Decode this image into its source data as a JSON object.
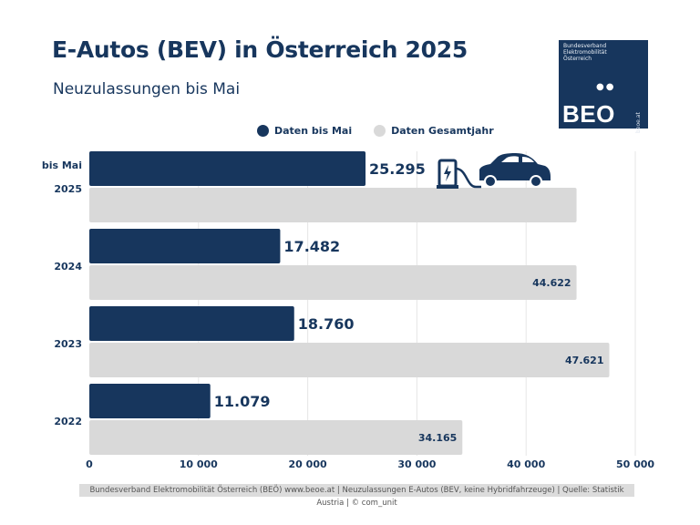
{
  "title": "E-Autos (BEV) in Österreich 2025",
  "subtitle": "Neuzulassungen bis Mai",
  "logo": {
    "org": "Bundesverband Elektromobilität Österreich",
    "dots": "●●",
    "text": "BEO",
    "url": "beoe.at"
  },
  "legend": [
    {
      "label": "Daten bis Mai",
      "color": "#17365d"
    },
    {
      "label": "Daten Gesamtjahr",
      "color": "#d9d9d9"
    }
  ],
  "footer": "Bundesverband Elektromobilität Österreich (BEÖ) www.beoe.at | Neuzulassungen E-Autos (BEV, keine Hybridfahrzeuge) | Quelle: Statistik Austria | © com_unit",
  "colors": {
    "dark": "#17365d",
    "light": "#d9d9d9",
    "grid": "#e6e6e6"
  },
  "chart_data": {
    "type": "bar",
    "orientation": "horizontal",
    "categories": [
      "2025",
      "2024",
      "2023",
      "2022"
    ],
    "category_prefix_2025": "bis Mai",
    "series": [
      {
        "name": "Daten bis Mai",
        "values": [
          25295,
          17482,
          18760,
          11079
        ],
        "labels": [
          "25.295",
          "17.482",
          "18.760",
          "11.079"
        ]
      },
      {
        "name": "Daten Gesamtjahr",
        "values": [
          44622,
          44622,
          47621,
          34165
        ],
        "labels": [
          "",
          "44.622",
          "47.621",
          "34.165"
        ]
      }
    ],
    "xlim": [
      0,
      50000
    ],
    "xticks": [
      0,
      10000,
      20000,
      30000,
      40000,
      50000
    ],
    "xtick_labels": [
      "0",
      "10 000",
      "20 000",
      "30 000",
      "40 000",
      "50 000"
    ],
    "grid": true
  },
  "icons": [
    "ev-charger-icon",
    "car-icon"
  ]
}
